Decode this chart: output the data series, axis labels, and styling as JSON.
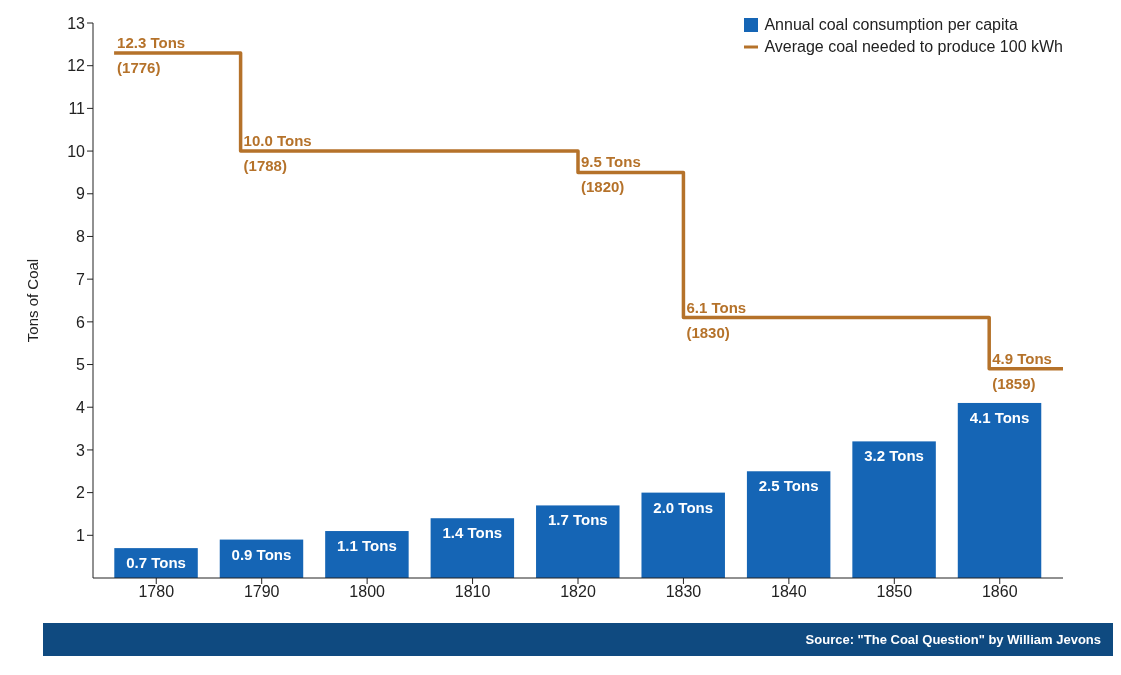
{
  "chart_data": {
    "type": "bar",
    "ylabel": "Tons of Coal",
    "x": [
      1780,
      1790,
      1800,
      1810,
      1820,
      1830,
      1840,
      1850,
      1860
    ],
    "series": [
      {
        "name": "Annual coal consumption per capita",
        "color": "#1565b5",
        "values": [
          0.7,
          0.9,
          1.1,
          1.4,
          1.7,
          2.0,
          2.5,
          3.2,
          4.1
        ],
        "value_labels": [
          "0.7 Tons",
          "0.9 Tons",
          "1.1 Tons",
          "1.4 Tons",
          "1.7 Tons",
          "2.0 Tons",
          "2.5 Tons",
          "3.2 Tons",
          "4.1 Tons"
        ]
      },
      {
        "type": "step",
        "name": "Average coal needed to produce 100 kWh",
        "color": "#b5722a",
        "x": [
          1776,
          1788,
          1820,
          1830,
          1859,
          1866
        ],
        "values": [
          12.3,
          10.0,
          9.5,
          6.1,
          4.9,
          4.9
        ],
        "value_labels": [
          "12.3 Tons",
          "10.0 Tons",
          "9.5 Tons",
          "6.1 Tons",
          "4.9 Tons",
          null
        ]
      }
    ],
    "annotations": [
      {
        "text": "(1776)",
        "x": 1776,
        "y": 12.3
      },
      {
        "text": "(1788)",
        "x": 1788,
        "y": 10.0
      },
      {
        "text": "(1820)",
        "x": 1820,
        "y": 9.5
      },
      {
        "text": "(1830)",
        "x": 1830,
        "y": 6.1
      },
      {
        "text": "(1859)",
        "x": 1859,
        "y": 4.9
      },
      "Source: \"The Coal Question\" by William Jevons"
    ],
    "xlim": [
      1774,
      1866
    ],
    "xticks": [
      1780,
      1790,
      1800,
      1810,
      1820,
      1830,
      1840,
      1850,
      1860
    ],
    "ylim": [
      0,
      13
    ],
    "yticks": [
      1,
      2,
      3,
      4,
      5,
      6,
      7,
      8,
      9,
      10,
      11,
      12,
      13
    ],
    "legend": "top right",
    "grid": false,
    "marker": "none",
    "line_style": "solid"
  }
}
